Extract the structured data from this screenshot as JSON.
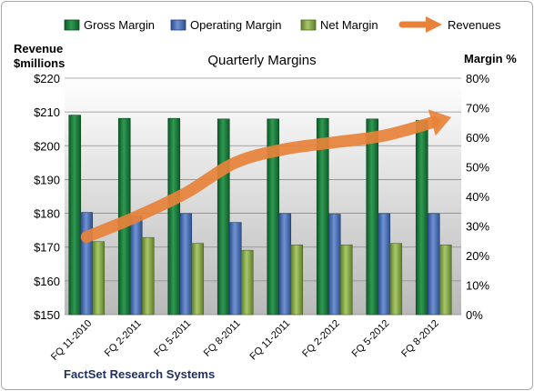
{
  "chart_data": {
    "type": "bar",
    "title": "Quarterly Margins",
    "left_axis_label_line1": "Revenue",
    "left_axis_label_line2": "$millions",
    "right_axis_label": "Margin %",
    "footer": "FactSet Research Systems",
    "categories": [
      "FQ 11-2010",
      "FQ 2-2011",
      "FQ 5-2011",
      "FQ 8-2011",
      "FQ 11-2011",
      "FQ 2-2012",
      "FQ 5-2012",
      "FQ 8-2012"
    ],
    "left_axis": {
      "min": 150,
      "max": 220,
      "step": 10,
      "tick_prefix": "$"
    },
    "right_axis": {
      "min": 0,
      "max": 80,
      "step": 10,
      "tick_suffix": "%"
    },
    "series": [
      {
        "name": "Gross Margin",
        "axis": "right",
        "kind": "bar",
        "color": "#1e7a3e",
        "values": [
          67.5,
          66.4,
          66.4,
          66.2,
          66.2,
          66.4,
          66.2,
          65.7
        ]
      },
      {
        "name": "Operating Margin",
        "axis": "right",
        "kind": "bar",
        "color": "#4a6fb5",
        "values": [
          34.6,
          33.5,
          34.2,
          31.2,
          34.2,
          34.0,
          34.2,
          34.2
        ]
      },
      {
        "name": "Net Margin",
        "axis": "right",
        "kind": "bar",
        "color": "#8aac4a",
        "values": [
          24.7,
          26.1,
          24.1,
          21.8,
          23.6,
          23.6,
          24.1,
          23.6
        ]
      },
      {
        "name": "Revenues",
        "axis": "left",
        "kind": "arrow-line",
        "color": "#e8823a",
        "values": [
          173,
          179,
          186,
          195,
          199,
          201,
          203,
          207
        ]
      }
    ],
    "grid": true,
    "legend_position": "top"
  }
}
